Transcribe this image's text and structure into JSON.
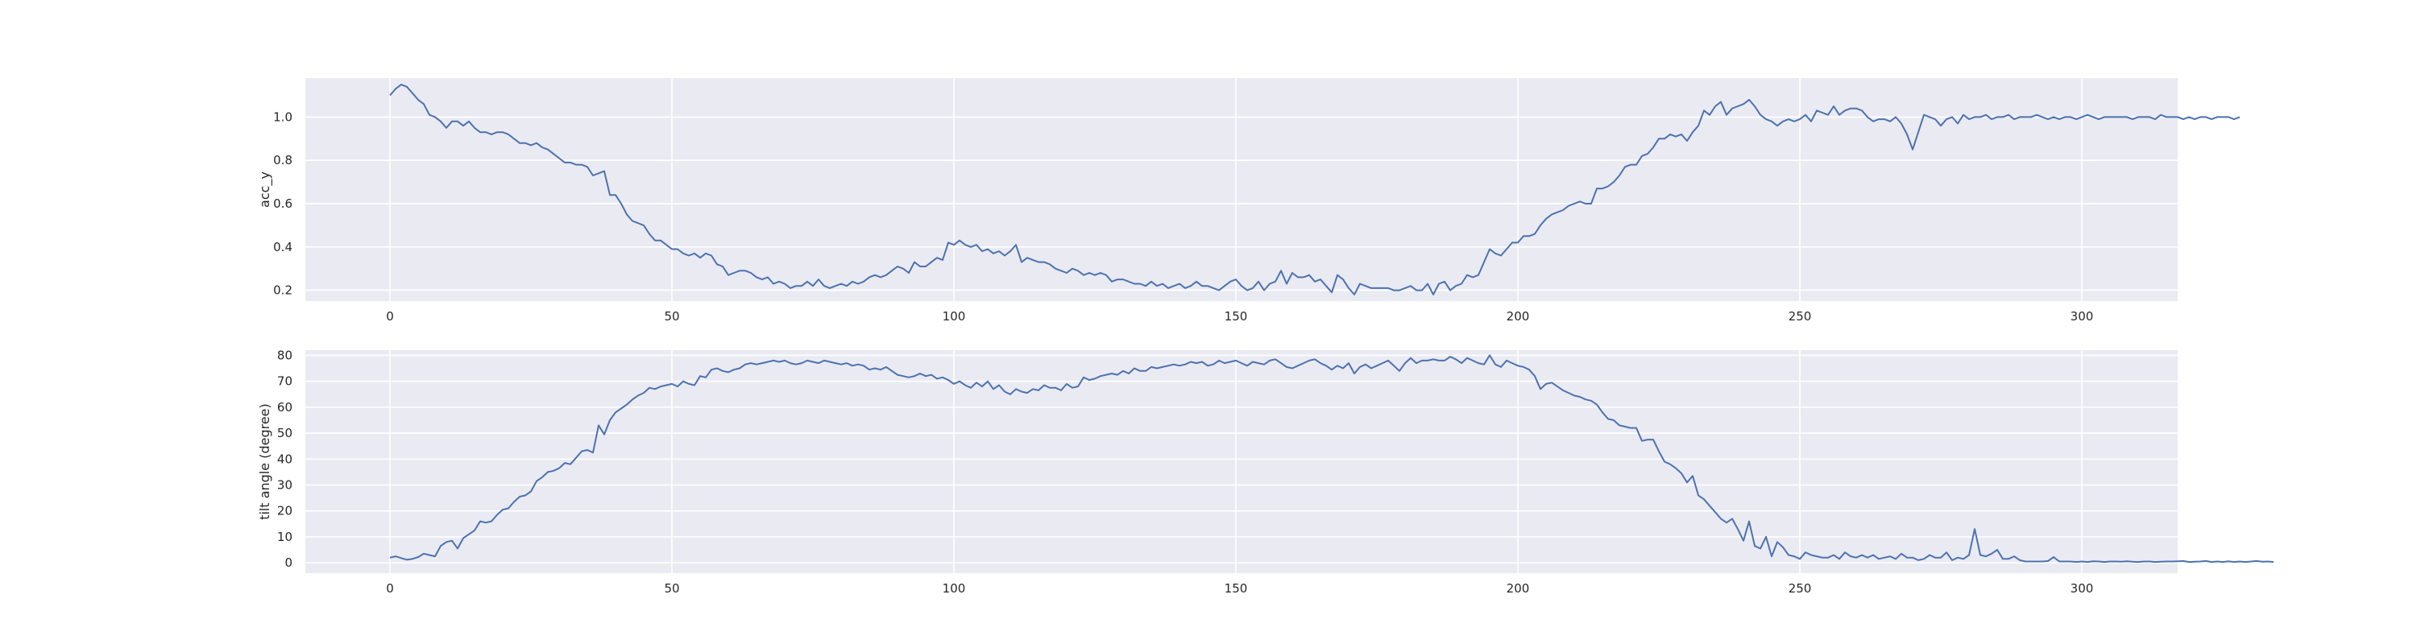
{
  "figure": {
    "background": "#ffffff",
    "plot_background": "#eaeaf2",
    "grid_color": "#ffffff",
    "line_color": "#4c72b0"
  },
  "chart_data": [
    {
      "type": "line",
      "title": "",
      "xlabel": "",
      "ylabel": "acc_y",
      "xlim": [
        -15,
        317
      ],
      "ylim": [
        0.15,
        1.18
      ],
      "xticks": [
        0,
        50,
        100,
        150,
        200,
        250,
        300
      ],
      "xtick_labels": [
        "0",
        "50",
        "100",
        "150",
        "200",
        "250",
        "300"
      ],
      "yticks": [
        0.2,
        0.4,
        0.6,
        0.8,
        1.0
      ],
      "ytick_labels": [
        "0.2",
        "0.4",
        "0.6",
        "0.8",
        "1.0"
      ],
      "grid": true,
      "series": [
        {
          "x_start": 0,
          "x_step": 1,
          "values": [
            1.1,
            1.13,
            1.15,
            1.14,
            1.11,
            1.08,
            1.06,
            1.01,
            1.0,
            0.98,
            0.95,
            0.98,
            0.98,
            0.96,
            0.98,
            0.95,
            0.93,
            0.93,
            0.92,
            0.93,
            0.93,
            0.92,
            0.9,
            0.88,
            0.88,
            0.87,
            0.88,
            0.86,
            0.85,
            0.83,
            0.81,
            0.79,
            0.79,
            0.78,
            0.78,
            0.77,
            0.73,
            0.74,
            0.75,
            0.64,
            0.64,
            0.6,
            0.55,
            0.52,
            0.51,
            0.5,
            0.46,
            0.43,
            0.43,
            0.41,
            0.39,
            0.39,
            0.37,
            0.36,
            0.37,
            0.35,
            0.37,
            0.36,
            0.32,
            0.31,
            0.27,
            0.28,
            0.29,
            0.29,
            0.28,
            0.26,
            0.25,
            0.26,
            0.23,
            0.24,
            0.23,
            0.21,
            0.22,
            0.22,
            0.24,
            0.22,
            0.25,
            0.22,
            0.21,
            0.22,
            0.23,
            0.22,
            0.24,
            0.23,
            0.24,
            0.26,
            0.27,
            0.26,
            0.27,
            0.29,
            0.31,
            0.3,
            0.28,
            0.33,
            0.31,
            0.31,
            0.33,
            0.35,
            0.34,
            0.42,
            0.41,
            0.43,
            0.41,
            0.4,
            0.41,
            0.38,
            0.39,
            0.37,
            0.38,
            0.36,
            0.38,
            0.41,
            0.33,
            0.35,
            0.34,
            0.33,
            0.33,
            0.32,
            0.3,
            0.29,
            0.28,
            0.3,
            0.29,
            0.27,
            0.28,
            0.27,
            0.28,
            0.27,
            0.24,
            0.25,
            0.25,
            0.24,
            0.23,
            0.23,
            0.22,
            0.24,
            0.22,
            0.23,
            0.21,
            0.22,
            0.23,
            0.21,
            0.22,
            0.24,
            0.22,
            0.22,
            0.21,
            0.2,
            0.22,
            0.24,
            0.25,
            0.22,
            0.2,
            0.21,
            0.24,
            0.2,
            0.23,
            0.24,
            0.29,
            0.23,
            0.28,
            0.26,
            0.26,
            0.27,
            0.24,
            0.25,
            0.22,
            0.19,
            0.27,
            0.25,
            0.21,
            0.18,
            0.23,
            0.22,
            0.21,
            0.21,
            0.21,
            0.21,
            0.2,
            0.2,
            0.21,
            0.22,
            0.2,
            0.2,
            0.23,
            0.18,
            0.23,
            0.24,
            0.2,
            0.22,
            0.23,
            0.27,
            0.26,
            0.27,
            0.33,
            0.39,
            0.37,
            0.36,
            0.39,
            0.42,
            0.42,
            0.45,
            0.45,
            0.46,
            0.5,
            0.53,
            0.55,
            0.56,
            0.57,
            0.59,
            0.6,
            0.61,
            0.6,
            0.6,
            0.67,
            0.67,
            0.68,
            0.7,
            0.73,
            0.77,
            0.78,
            0.78,
            0.82,
            0.83,
            0.86,
            0.9,
            0.9,
            0.92,
            0.91,
            0.92,
            0.89,
            0.93,
            0.96,
            1.03,
            1.01,
            1.05,
            1.07,
            1.01,
            1.04,
            1.05,
            1.06,
            1.08,
            1.05,
            1.01,
            0.99,
            0.98,
            0.96,
            0.98,
            0.99,
            0.98,
            0.99,
            1.01,
            0.98,
            1.03,
            1.02,
            1.01,
            1.05,
            1.01,
            1.03,
            1.04,
            1.04,
            1.03,
            1.0,
            0.98,
            0.99,
            0.99,
            0.98,
            1.0,
            0.97,
            0.92,
            0.85,
            0.93,
            1.01,
            1.0,
            0.99,
            0.96,
            0.99,
            1.0,
            0.97,
            1.01,
            0.99,
            1.0,
            1.0,
            1.01,
            0.99,
            1.0,
            1.0,
            1.01,
            0.99,
            1.0,
            1.0,
            1.0,
            1.01,
            1.0,
            0.99,
            1.0,
            0.99,
            1.0,
            1.0,
            0.99,
            1.0,
            1.01,
            1.0,
            0.99,
            1.0,
            1.0,
            1.0,
            1.0,
            1.0,
            0.99,
            1.0,
            1.0,
            1.0,
            0.99,
            1.01,
            1.0,
            1.0,
            1.0,
            0.99,
            1.0,
            0.99,
            1.0,
            1.0,
            0.99,
            1.0,
            1.0,
            1.0,
            0.99,
            1.0
          ]
        }
      ]
    },
    {
      "type": "line",
      "title": "",
      "xlabel": "",
      "ylabel": "tilt angle (degree)",
      "xlim": [
        -15,
        317
      ],
      "ylim": [
        -4,
        82
      ],
      "xticks": [
        0,
        50,
        100,
        150,
        200,
        250,
        300
      ],
      "xtick_labels": [
        "0",
        "50",
        "100",
        "150",
        "200",
        "250",
        "300"
      ],
      "yticks": [
        0,
        10,
        20,
        30,
        40,
        50,
        60,
        70,
        80
      ],
      "ytick_labels": [
        "0",
        "10",
        "20",
        "30",
        "40",
        "50",
        "60",
        "70",
        "80"
      ],
      "grid": true,
      "series": [
        {
          "x_start": 0,
          "x_step": 1,
          "values": [
            2,
            2.5,
            1.8,
            1.2,
            1.5,
            2.2,
            3.5,
            3,
            2.5,
            6.5,
            8,
            8.5,
            5.5,
            9.5,
            11,
            12.5,
            16,
            15.5,
            16,
            18.5,
            20.5,
            21,
            23.5,
            25.5,
            26,
            27.5,
            31.5,
            33,
            35,
            35.5,
            36.5,
            38.5,
            38,
            40.5,
            43,
            43.5,
            42.5,
            53,
            49.5,
            55,
            58,
            59.5,
            61,
            63,
            64.5,
            65.5,
            67.5,
            67,
            68,
            68.5,
            69,
            68,
            70,
            69,
            68.5,
            72,
            71.5,
            74.5,
            75,
            74,
            73.5,
            74.5,
            75,
            76.5,
            77,
            76.5,
            77,
            77.5,
            78,
            77.5,
            78,
            77,
            76.5,
            77,
            78,
            77.5,
            77,
            78,
            77.5,
            77,
            76.5,
            77,
            76,
            76.5,
            76,
            74.5,
            75,
            74.5,
            75.5,
            74,
            72.5,
            72,
            71.5,
            72,
            73,
            72,
            72.5,
            71,
            71.5,
            70.5,
            69,
            70,
            68.5,
            67.5,
            69.5,
            68,
            70,
            67,
            68.5,
            66,
            65,
            67,
            66,
            65.5,
            67,
            66.5,
            68.5,
            67.5,
            67.5,
            66.5,
            69,
            67.5,
            68,
            71.5,
            70.5,
            71,
            72,
            72.5,
            73,
            72.5,
            74,
            73,
            75,
            74,
            74,
            75.5,
            75,
            75.5,
            76,
            76.5,
            76,
            76.5,
            77.5,
            77,
            77.5,
            76,
            76.5,
            78,
            77,
            77.5,
            78,
            77,
            76,
            77.5,
            77,
            76.5,
            78,
            78.5,
            77,
            75.5,
            75,
            76,
            77,
            78,
            78.5,
            77,
            76,
            74.5,
            76,
            75,
            77,
            73,
            75.5,
            76.5,
            75,
            76,
            77,
            78,
            76,
            74,
            77,
            79,
            77,
            78,
            78,
            78.5,
            78,
            78,
            79.5,
            78.5,
            77,
            79,
            78,
            77,
            76.5,
            80,
            76.5,
            75.5,
            78,
            77,
            76,
            75.5,
            74.5,
            72,
            67,
            69,
            69.5,
            68,
            66.5,
            65.5,
            64.5,
            64,
            63,
            62.5,
            61,
            58,
            55.5,
            55,
            53,
            52.5,
            52,
            52,
            47,
            47.5,
            47.5,
            43,
            39,
            38,
            36.5,
            34.5,
            31,
            33.5,
            26,
            24.5,
            22,
            19.5,
            17,
            15.5,
            17,
            13,
            8.5,
            16,
            6.5,
            5.5,
            10,
            2.5,
            8,
            6,
            3,
            2.5,
            1.5,
            4,
            3,
            2.5,
            2,
            2,
            3,
            1.5,
            4,
            2.5,
            2,
            3,
            2,
            3,
            1.5,
            2,
            2.5,
            1.5,
            3.5,
            2,
            2,
            1,
            1.5,
            3,
            2,
            2,
            4,
            1,
            2,
            1.5,
            3,
            13,
            3,
            2.5,
            3.5,
            5,
            1.5,
            1.5,
            2.5,
            1,
            0.5,
            0.5,
            0.5,
            0.5,
            0.7,
            2.2,
            0.5,
            0.5,
            0.5,
            0.3,
            0.5,
            0.3,
            0.6,
            0.5,
            0.3,
            0.5,
            0.5,
            0.4,
            0.6,
            0.4,
            0.3,
            0.5,
            0.5,
            0.3,
            0.4,
            0.5,
            0.5,
            0.6,
            0.7,
            0.3,
            0.4,
            0.5,
            0.7,
            0.3,
            0.5,
            0.3,
            0.6,
            0.3,
            0.5,
            0.3,
            0.5,
            0.7,
            0.4,
            0.5,
            0.3
          ]
        }
      ]
    }
  ]
}
